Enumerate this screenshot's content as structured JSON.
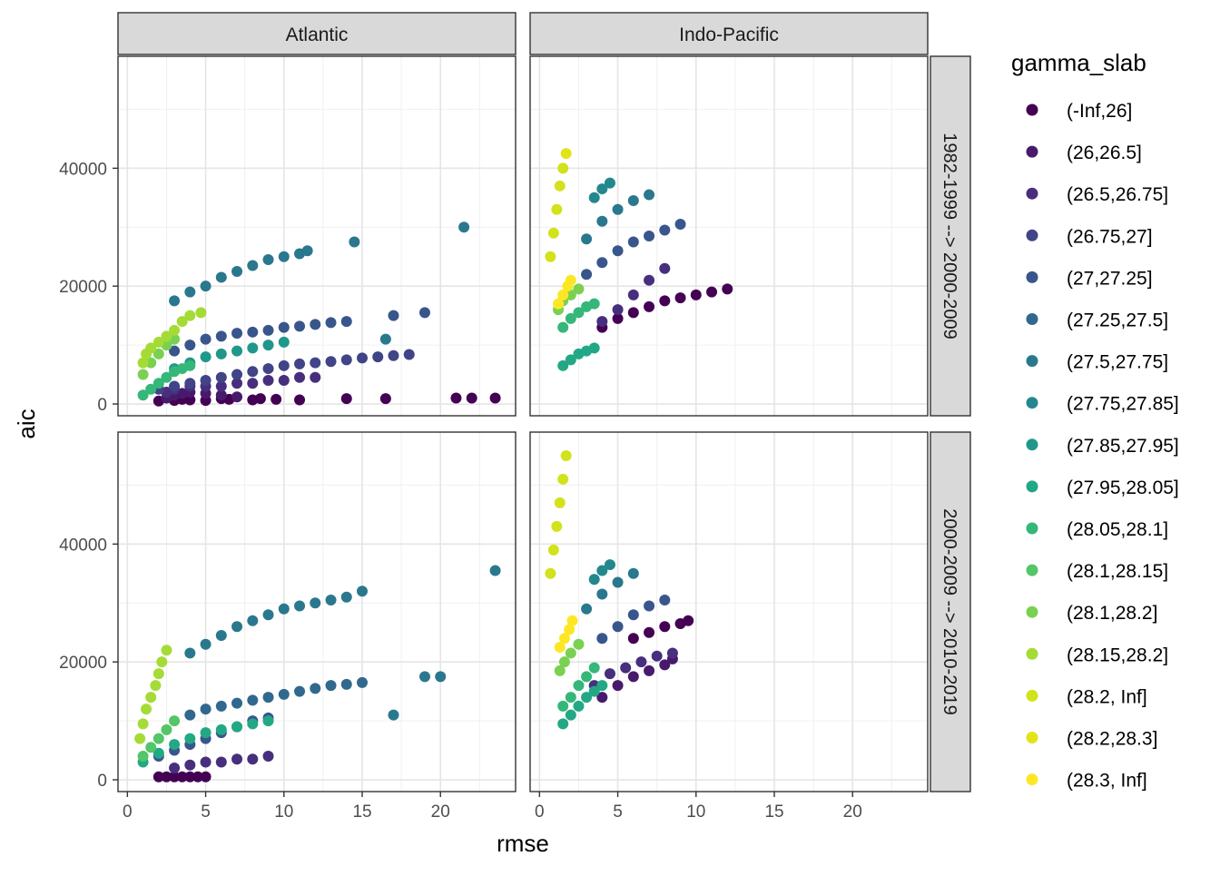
{
  "chart_data": {
    "type": "scatter",
    "xlabel": "rmse",
    "ylabel": "aic",
    "xlim": [
      -0.6,
      24.8
    ],
    "ylim": [
      -2000,
      59000
    ],
    "x_ticks": [
      0,
      5,
      10,
      15,
      20
    ],
    "y_ticks": [
      0,
      20000,
      40000
    ],
    "y_tick_labels": [
      "0",
      "20000",
      "40000"
    ],
    "grid": true,
    "facet_cols": [
      "Atlantic",
      "Indo-Pacific"
    ],
    "facet_rows": [
      "1982-1999 --> 2000-2009",
      "2000-2009 --> 2010-2019"
    ],
    "legend": {
      "title": "gamma_slab",
      "position": "right",
      "entries": [
        {
          "label": "(-Inf,26]",
          "color": "#440154"
        },
        {
          "label": "(26,26.5]",
          "color": "#481A6C"
        },
        {
          "label": "(26.5,26.75]",
          "color": "#472F7D"
        },
        {
          "label": "(26.75,27]",
          "color": "#414487"
        },
        {
          "label": "(27,27.25]",
          "color": "#39568C"
        },
        {
          "label": "(27.25,27.5]",
          "color": "#31688E"
        },
        {
          "label": "(27.5,27.75]",
          "color": "#2A788E"
        },
        {
          "label": "(27.75,27.85]",
          "color": "#23888E"
        },
        {
          "label": "(27.85,27.95]",
          "color": "#1F988B"
        },
        {
          "label": "(27.95,28.05]",
          "color": "#22A884"
        },
        {
          "label": "(28.05,28.1]",
          "color": "#35B779"
        },
        {
          "label": "(28.1,28.15]",
          "color": "#54C568"
        },
        {
          "label": "(28.1,28.2]",
          "color": "#7AD151"
        },
        {
          "label": "(28.15,28.2]",
          "color": "#A5DB36"
        },
        {
          "label": "(28.2, Inf]",
          "color": "#D2E21B"
        },
        {
          "label": "(28.2,28.3]",
          "color": "#E3E418"
        },
        {
          "label": "(28.3, Inf]",
          "color": "#FDE725"
        }
      ]
    },
    "panels": [
      {
        "col": "Atlantic",
        "row": "1982-1999 --> 2000-2009",
        "series": [
          {
            "group": 0,
            "x": [
              2,
              3,
              3.5,
              4,
              5,
              6,
              6.5,
              8,
              8.5,
              9.5,
              11,
              14,
              16.5,
              21,
              22,
              23.5
            ],
            "y": [
              500,
              600,
              800,
              700,
              600,
              900,
              800,
              700,
              900,
              800,
              700,
              900,
              900,
              1000,
              1000,
              1000
            ]
          },
          {
            "group": 1,
            "x": [
              2.5,
              3,
              3.5,
              4,
              5,
              6,
              7
            ],
            "y": [
              1000,
              1500,
              1800,
              2000,
              1800,
              1500,
              1200
            ]
          },
          {
            "group": 2,
            "x": [
              2.5,
              3,
              4,
              5,
              6,
              7,
              8,
              9,
              10,
              11,
              12
            ],
            "y": [
              2000,
              2500,
              3000,
              3000,
              3000,
              3500,
              3500,
              4000,
              4000,
              4500,
              4500
            ]
          },
          {
            "group": 3,
            "x": [
              2,
              3,
              4,
              5,
              6,
              7,
              8,
              9,
              10,
              11,
              12,
              13,
              14,
              15,
              16,
              17,
              18
            ],
            "y": [
              2500,
              3000,
              3500,
              4000,
              4500,
              5000,
              5500,
              6000,
              6500,
              6800,
              7000,
              7200,
              7500,
              7800,
              8000,
              8200,
              8400
            ]
          },
          {
            "group": 4,
            "x": [
              3,
              4,
              5,
              6,
              7,
              8,
              9,
              10,
              11,
              12,
              13,
              14,
              17,
              19
            ],
            "y": [
              9000,
              10000,
              11000,
              11500,
              12000,
              12200,
              12500,
              13000,
              13200,
              13500,
              13800,
              14000,
              15000,
              15500
            ]
          },
          {
            "group": 6,
            "x": [
              3,
              4,
              5,
              6,
              7,
              8,
              9,
              10,
              11,
              11.5,
              14.5,
              16.5,
              21.5
            ],
            "y": [
              17500,
              19000,
              20000,
              21500,
              22500,
              23500,
              24500,
              25000,
              25500,
              26000,
              27500,
              11000,
              30000
            ]
          },
          {
            "group": 8,
            "x": [
              3,
              4,
              5,
              6,
              7,
              8,
              9,
              10
            ],
            "y": [
              6000,
              7000,
              8000,
              8500,
              9000,
              9500,
              10000,
              10500
            ]
          },
          {
            "group": 10,
            "x": [
              1,
              1.5,
              2,
              2.5,
              3,
              3.5,
              4
            ],
            "y": [
              1500,
              2500,
              3500,
              4500,
              5500,
              6000,
              6500
            ]
          },
          {
            "group": 12,
            "x": [
              1,
              1.5,
              2,
              2.5,
              3
            ],
            "y": [
              5000,
              7000,
              8500,
              10000,
              11000
            ]
          },
          {
            "group": 13,
            "x": [
              1,
              1.2,
              1.5,
              2,
              2.5,
              3,
              3.5,
              4,
              4.7
            ],
            "y": [
              7000,
              8500,
              9500,
              10500,
              11500,
              12500,
              14000,
              15000,
              15500
            ]
          }
        ]
      },
      {
        "col": "Indo-Pacific",
        "row": "1982-1999 --> 2000-2009",
        "series": [
          {
            "group": 0,
            "x": [
              4,
              5,
              6,
              7,
              8,
              9,
              10,
              11,
              12
            ],
            "y": [
              13000,
              14500,
              15500,
              16500,
              17500,
              18000,
              18500,
              19000,
              19500
            ]
          },
          {
            "group": 2,
            "x": [
              4,
              5,
              6,
              7,
              8
            ],
            "y": [
              14000,
              16000,
              18500,
              21000,
              23000
            ]
          },
          {
            "group": 4,
            "x": [
              3,
              4,
              5,
              6,
              7,
              8,
              9
            ],
            "y": [
              22000,
              24000,
              26000,
              27500,
              28500,
              29500,
              30500
            ]
          },
          {
            "group": 6,
            "x": [
              3,
              4,
              5,
              6,
              7
            ],
            "y": [
              28000,
              31000,
              33000,
              34500,
              35500
            ]
          },
          {
            "group": 7,
            "x": [
              3.5,
              4,
              4.5
            ],
            "y": [
              35000,
              36500,
              37500
            ]
          },
          {
            "group": 9,
            "x": [
              1.5,
              2,
              2.5,
              3,
              3.5
            ],
            "y": [
              6500,
              7500,
              8500,
              9000,
              9500
            ]
          },
          {
            "group": 10,
            "x": [
              1.5,
              2,
              2.5,
              3,
              3.5
            ],
            "y": [
              13000,
              14500,
              15500,
              16500,
              17000
            ]
          },
          {
            "group": 12,
            "x": [
              1.2,
              1.5,
              2,
              2.5
            ],
            "y": [
              16000,
              17500,
              18500,
              19500
            ]
          },
          {
            "group": 14,
            "x": [
              0.7,
              0.9,
              1.1,
              1.3,
              1.5
            ],
            "y": [
              25000,
              29000,
              33000,
              37000,
              40000
            ]
          },
          {
            "group": 15,
            "x": [
              1.7
            ],
            "y": [
              42500
            ]
          },
          {
            "group": 16,
            "x": [
              1.2,
              1.5,
              1.8,
              2
            ],
            "y": [
              17000,
              18500,
              20000,
              21000
            ]
          }
        ]
      },
      {
        "col": "Atlantic",
        "row": "2000-2009 --> 2010-2019",
        "series": [
          {
            "group": 0,
            "x": [
              2,
              2.5,
              3,
              3.5,
              4,
              4.5,
              5
            ],
            "y": [
              500,
              500,
              500,
              500,
              500,
              500,
              500
            ]
          },
          {
            "group": 2,
            "x": [
              3,
              4,
              5,
              6,
              7,
              8,
              9
            ],
            "y": [
              2000,
              2500,
              3000,
              3000,
              3500,
              3500,
              4000
            ]
          },
          {
            "group": 4,
            "x": [
              2,
              3,
              4,
              5,
              6,
              7,
              8,
              9
            ],
            "y": [
              4000,
              5000,
              6000,
              7000,
              8000,
              9000,
              10000,
              10500
            ]
          },
          {
            "group": 5,
            "x": [
              4,
              5,
              6,
              7,
              8,
              9,
              10,
              11,
              12,
              13,
              14,
              15
            ],
            "y": [
              11000,
              12000,
              12500,
              13000,
              13500,
              14000,
              14500,
              15000,
              15500,
              16000,
              16200,
              16500
            ]
          },
          {
            "group": 6,
            "x": [
              4,
              5,
              6,
              7,
              8,
              9,
              10,
              11,
              12,
              13,
              14
            ],
            "y": [
              21500,
              23000,
              24500,
              26000,
              27000,
              28000,
              29000,
              29500,
              30000,
              30500,
              31000
            ]
          },
          {
            "group": 6,
            "x": [
              15,
              17,
              19,
              20,
              23.5
            ],
            "y": [
              32000,
              11000,
              17500,
              17500,
              35500
            ]
          },
          {
            "group": 9,
            "x": [
              1,
              2,
              3,
              4,
              5,
              6,
              7,
              8,
              9
            ],
            "y": [
              3000,
              4500,
              6000,
              7000,
              8000,
              8500,
              9000,
              9500,
              10000
            ]
          },
          {
            "group": 11,
            "x": [
              1,
              1.5,
              2,
              2.5,
              3
            ],
            "y": [
              4000,
              5500,
              7000,
              8500,
              10000
            ]
          },
          {
            "group": 13,
            "x": [
              0.8,
              1,
              1.2,
              1.5,
              1.8,
              2,
              2.2,
              2.5
            ],
            "y": [
              7000,
              9500,
              12000,
              14000,
              16000,
              18000,
              20000,
              22000
            ]
          }
        ]
      },
      {
        "col": "Indo-Pacific",
        "row": "2000-2009 --> 2010-2019",
        "series": [
          {
            "group": 0,
            "x": [
              6,
              7,
              8,
              9,
              9.5
            ],
            "y": [
              24000,
              25000,
              26000,
              26500,
              27000
            ]
          },
          {
            "group": 1,
            "x": [
              4,
              5,
              6,
              7,
              8,
              8.5
            ],
            "y": [
              14000,
              16000,
              17500,
              18500,
              19500,
              20500
            ]
          },
          {
            "group": 2,
            "x": [
              3.5,
              4.5,
              5.5,
              6.5,
              7.5,
              8.5
            ],
            "y": [
              16000,
              18000,
              19000,
              20000,
              21000,
              21500
            ]
          },
          {
            "group": 4,
            "x": [
              4,
              5,
              6,
              7,
              8
            ],
            "y": [
              24000,
              26000,
              28000,
              29500,
              30500
            ]
          },
          {
            "group": 6,
            "x": [
              3,
              4,
              5,
              6
            ],
            "y": [
              29000,
              31500,
              33500,
              35000
            ]
          },
          {
            "group": 7,
            "x": [
              3.5,
              4,
              4.5
            ],
            "y": [
              34000,
              35500,
              36500
            ]
          },
          {
            "group": 9,
            "x": [
              1.5,
              2,
              2.5,
              3,
              3.5,
              4
            ],
            "y": [
              9500,
              11000,
              12500,
              14000,
              15000,
              16000
            ]
          },
          {
            "group": 10,
            "x": [
              1.5,
              2,
              2.5,
              3,
              3.5
            ],
            "y": [
              12500,
              14000,
              16000,
              17500,
              19000
            ]
          },
          {
            "group": 12,
            "x": [
              1.3,
              1.6,
              2,
              2.5
            ],
            "y": [
              18500,
              20000,
              21500,
              23000
            ]
          },
          {
            "group": 14,
            "x": [
              0.7,
              0.9,
              1.1,
              1.3,
              1.5,
              1.7
            ],
            "y": [
              35000,
              39000,
              43000,
              47000,
              51000,
              55000
            ]
          },
          {
            "group": 16,
            "x": [
              1.3,
              1.6,
              1.9,
              2.1
            ],
            "y": [
              22500,
              24000,
              25500,
              27000
            ]
          }
        ]
      }
    ]
  }
}
